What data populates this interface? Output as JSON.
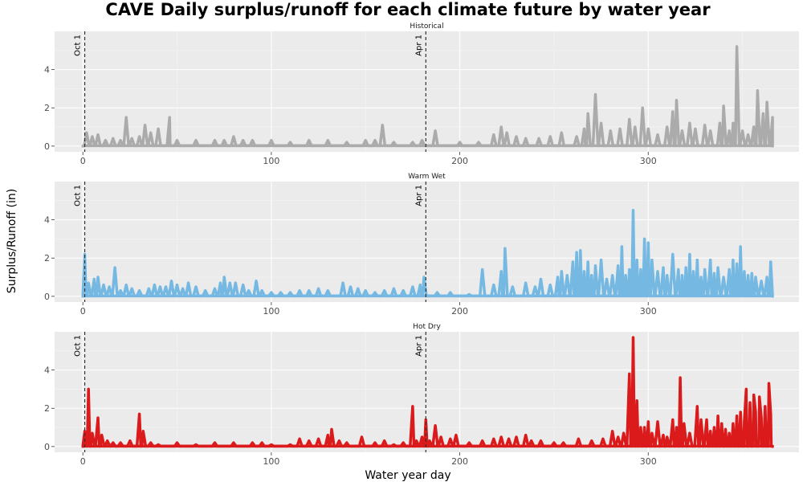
{
  "chart_data": {
    "type": "line",
    "title": "CAVE Daily surplus/runoff for each climate future by water year",
    "xlabel": "Water year day",
    "ylabel": "Surplus/Runoff (in)",
    "xlim": [
      -15,
      380
    ],
    "ylim": [
      -0.3,
      6.0
    ],
    "x_ticks": [
      0,
      100,
      200,
      300
    ],
    "y_ticks": [
      0,
      2,
      4
    ],
    "grid": true,
    "legend": "none",
    "reference_lines": [
      {
        "x": 1,
        "label": "Oct 1"
      },
      {
        "x": 182,
        "label": "Apr 1"
      }
    ],
    "panels": [
      {
        "name": "Historical",
        "color": "#ABABAB",
        "peaks": [
          [
            2,
            0.7
          ],
          [
            5,
            0.5
          ],
          [
            8,
            0.6
          ],
          [
            12,
            0.3
          ],
          [
            16,
            0.4
          ],
          [
            20,
            0.3
          ],
          [
            23,
            1.5
          ],
          [
            26,
            0.4
          ],
          [
            30,
            0.5
          ],
          [
            33,
            1.1
          ],
          [
            36,
            0.7
          ],
          [
            40,
            0.9
          ],
          [
            45,
            0.4
          ],
          [
            46,
            1.5
          ],
          [
            50,
            0.3
          ],
          [
            60,
            0.3
          ],
          [
            70,
            0.3
          ],
          [
            75,
            0.3
          ],
          [
            80,
            0.5
          ],
          [
            85,
            0.3
          ],
          [
            90,
            0.3
          ],
          [
            100,
            0.3
          ],
          [
            110,
            0.2
          ],
          [
            120,
            0.3
          ],
          [
            130,
            0.3
          ],
          [
            140,
            0.2
          ],
          [
            150,
            0.3
          ],
          [
            155,
            0.3
          ],
          [
            159,
            1.1
          ],
          [
            165,
            0.2
          ],
          [
            175,
            0.2
          ],
          [
            180,
            0.3
          ],
          [
            187,
            0.8
          ],
          [
            200,
            0.2
          ],
          [
            210,
            0.2
          ],
          [
            218,
            0.6
          ],
          [
            222,
            1.0
          ],
          [
            225,
            0.7
          ],
          [
            230,
            0.5
          ],
          [
            235,
            0.4
          ],
          [
            242,
            0.4
          ],
          [
            248,
            0.5
          ],
          [
            254,
            0.7
          ],
          [
            262,
            0.5
          ],
          [
            266,
            0.9
          ],
          [
            268,
            1.7
          ],
          [
            272,
            2.7
          ],
          [
            275,
            1.2
          ],
          [
            280,
            0.8
          ],
          [
            285,
            0.9
          ],
          [
            290,
            1.4
          ],
          [
            293,
            1.0
          ],
          [
            297,
            2.0
          ],
          [
            300,
            0.9
          ],
          [
            305,
            0.6
          ],
          [
            310,
            1.0
          ],
          [
            313,
            1.8
          ],
          [
            315,
            2.4
          ],
          [
            318,
            0.8
          ],
          [
            322,
            1.2
          ],
          [
            325,
            0.9
          ],
          [
            330,
            1.1
          ],
          [
            333,
            0.8
          ],
          [
            338,
            1.2
          ],
          [
            340,
            2.1
          ],
          [
            343,
            0.8
          ],
          [
            345,
            1.2
          ],
          [
            347,
            5.2
          ],
          [
            350,
            0.8
          ],
          [
            353,
            0.6
          ],
          [
            356,
            1.0
          ],
          [
            358,
            2.9
          ],
          [
            361,
            1.7
          ],
          [
            363,
            2.3
          ],
          [
            366,
            1.5
          ]
        ]
      },
      {
        "name": "Warm Wet",
        "color": "#75B9E3",
        "peaks": [
          [
            1,
            2.2
          ],
          [
            3,
            0.7
          ],
          [
            6,
            0.9
          ],
          [
            8,
            1.0
          ],
          [
            11,
            0.6
          ],
          [
            14,
            0.5
          ],
          [
            17,
            1.5
          ],
          [
            20,
            0.3
          ],
          [
            23,
            0.6
          ],
          [
            26,
            0.4
          ],
          [
            30,
            0.3
          ],
          [
            35,
            0.4
          ],
          [
            38,
            0.6
          ],
          [
            41,
            0.5
          ],
          [
            44,
            0.5
          ],
          [
            47,
            0.8
          ],
          [
            50,
            0.6
          ],
          [
            53,
            0.4
          ],
          [
            56,
            0.7
          ],
          [
            60,
            0.5
          ],
          [
            65,
            0.3
          ],
          [
            70,
            0.4
          ],
          [
            73,
            0.7
          ],
          [
            75,
            1.0
          ],
          [
            78,
            0.7
          ],
          [
            81,
            0.7
          ],
          [
            85,
            0.6
          ],
          [
            88,
            0.3
          ],
          [
            92,
            0.8
          ],
          [
            95,
            0.3
          ],
          [
            100,
            0.2
          ],
          [
            105,
            0.2
          ],
          [
            110,
            0.2
          ],
          [
            115,
            0.3
          ],
          [
            120,
            0.3
          ],
          [
            125,
            0.4
          ],
          [
            130,
            0.3
          ],
          [
            138,
            0.7
          ],
          [
            142,
            0.5
          ],
          [
            146,
            0.4
          ],
          [
            150,
            0.3
          ],
          [
            155,
            0.2
          ],
          [
            160,
            0.3
          ],
          [
            165,
            0.4
          ],
          [
            170,
            0.3
          ],
          [
            175,
            0.5
          ],
          [
            179,
            0.6
          ],
          [
            181,
            1.0
          ],
          [
            188,
            0.2
          ],
          [
            195,
            0.2
          ],
          [
            205,
            0.1
          ],
          [
            212,
            1.4
          ],
          [
            218,
            0.6
          ],
          [
            222,
            1.3
          ],
          [
            224,
            2.5
          ],
          [
            228,
            0.5
          ],
          [
            235,
            0.7
          ],
          [
            240,
            0.5
          ],
          [
            243,
            0.9
          ],
          [
            248,
            0.6
          ],
          [
            252,
            1.0
          ],
          [
            254,
            1.3
          ],
          [
            257,
            1.1
          ],
          [
            260,
            1.8
          ],
          [
            262,
            2.3
          ],
          [
            264,
            2.4
          ],
          [
            266,
            1.3
          ],
          [
            268,
            1.8
          ],
          [
            270,
            1.1
          ],
          [
            272,
            1.6
          ],
          [
            275,
            1.9
          ],
          [
            278,
            0.9
          ],
          [
            281,
            1.1
          ],
          [
            284,
            1.6
          ],
          [
            286,
            2.6
          ],
          [
            288,
            1.1
          ],
          [
            290,
            1.4
          ],
          [
            292,
            4.5
          ],
          [
            294,
            1.9
          ],
          [
            296,
            1.4
          ],
          [
            298,
            3.0
          ],
          [
            300,
            2.8
          ],
          [
            302,
            1.9
          ],
          [
            305,
            1.3
          ],
          [
            308,
            1.5
          ],
          [
            310,
            1.1
          ],
          [
            313,
            2.2
          ],
          [
            316,
            1.4
          ],
          [
            318,
            1.1
          ],
          [
            320,
            1.5
          ],
          [
            322,
            2.2
          ],
          [
            324,
            1.3
          ],
          [
            326,
            1.9
          ],
          [
            328,
            1.0
          ],
          [
            330,
            1.4
          ],
          [
            333,
            1.9
          ],
          [
            335,
            1.2
          ],
          [
            337,
            1.5
          ],
          [
            340,
            1.0
          ],
          [
            343,
            1.4
          ],
          [
            345,
            1.9
          ],
          [
            347,
            1.7
          ],
          [
            349,
            2.6
          ],
          [
            351,
            1.3
          ],
          [
            353,
            1.1
          ],
          [
            355,
            1.2
          ],
          [
            357,
            1.0
          ],
          [
            360,
            0.8
          ],
          [
            363,
            1.0
          ],
          [
            365,
            1.8
          ]
        ]
      },
      {
        "name": "Hot Dry",
        "color": "#DB1A1C",
        "peaks": [
          [
            1,
            0.8
          ],
          [
            3,
            3.0
          ],
          [
            5,
            0.7
          ],
          [
            8,
            1.5
          ],
          [
            10,
            0.6
          ],
          [
            13,
            0.3
          ],
          [
            16,
            0.2
          ],
          [
            20,
            0.2
          ],
          [
            25,
            0.3
          ],
          [
            30,
            1.7
          ],
          [
            32,
            0.8
          ],
          [
            36,
            0.2
          ],
          [
            40,
            0.1
          ],
          [
            50,
            0.2
          ],
          [
            60,
            0.1
          ],
          [
            70,
            0.2
          ],
          [
            80,
            0.2
          ],
          [
            90,
            0.2
          ],
          [
            95,
            0.2
          ],
          [
            100,
            0.1
          ],
          [
            110,
            0.1
          ],
          [
            115,
            0.4
          ],
          [
            120,
            0.3
          ],
          [
            125,
            0.4
          ],
          [
            130,
            0.6
          ],
          [
            132,
            0.9
          ],
          [
            136,
            0.3
          ],
          [
            140,
            0.2
          ],
          [
            148,
            0.5
          ],
          [
            155,
            0.2
          ],
          [
            160,
            0.3
          ],
          [
            165,
            0.1
          ],
          [
            170,
            0.2
          ],
          [
            175,
            2.1
          ],
          [
            177,
            0.3
          ],
          [
            180,
            0.5
          ],
          [
            182,
            1.4
          ],
          [
            184,
            0.3
          ],
          [
            187,
            1.1
          ],
          [
            190,
            0.5
          ],
          [
            195,
            0.4
          ],
          [
            198,
            0.6
          ],
          [
            205,
            0.2
          ],
          [
            212,
            0.3
          ],
          [
            218,
            0.4
          ],
          [
            222,
            0.5
          ],
          [
            226,
            0.4
          ],
          [
            230,
            0.5
          ],
          [
            235,
            0.6
          ],
          [
            238,
            0.3
          ],
          [
            243,
            0.3
          ],
          [
            250,
            0.2
          ],
          [
            255,
            0.2
          ],
          [
            263,
            0.4
          ],
          [
            270,
            0.3
          ],
          [
            276,
            0.4
          ],
          [
            281,
            0.8
          ],
          [
            284,
            0.5
          ],
          [
            287,
            0.7
          ],
          [
            290,
            3.8
          ],
          [
            292,
            5.7
          ],
          [
            294,
            2.4
          ],
          [
            296,
            1.0
          ],
          [
            298,
            1.0
          ],
          [
            300,
            1.3
          ],
          [
            302,
            0.7
          ],
          [
            305,
            1.3
          ],
          [
            308,
            0.6
          ],
          [
            310,
            0.5
          ],
          [
            313,
            1.4
          ],
          [
            315,
            1.0
          ],
          [
            317,
            3.6
          ],
          [
            319,
            1.2
          ],
          [
            322,
            0.7
          ],
          [
            326,
            2.1
          ],
          [
            328,
            1.4
          ],
          [
            331,
            1.4
          ],
          [
            333,
            0.8
          ],
          [
            335,
            1.0
          ],
          [
            337,
            1.6
          ],
          [
            339,
            1.2
          ],
          [
            341,
            0.9
          ],
          [
            343,
            0.7
          ],
          [
            345,
            1.2
          ],
          [
            347,
            1.6
          ],
          [
            349,
            1.8
          ],
          [
            351,
            1.3
          ],
          [
            352,
            3.0
          ],
          [
            354,
            2.3
          ],
          [
            356,
            2.7
          ],
          [
            357,
            1.8
          ],
          [
            359,
            2.6
          ],
          [
            360,
            1.5
          ],
          [
            362,
            2.1
          ],
          [
            364,
            3.3
          ],
          [
            365,
            1.7
          ]
        ]
      }
    ]
  }
}
